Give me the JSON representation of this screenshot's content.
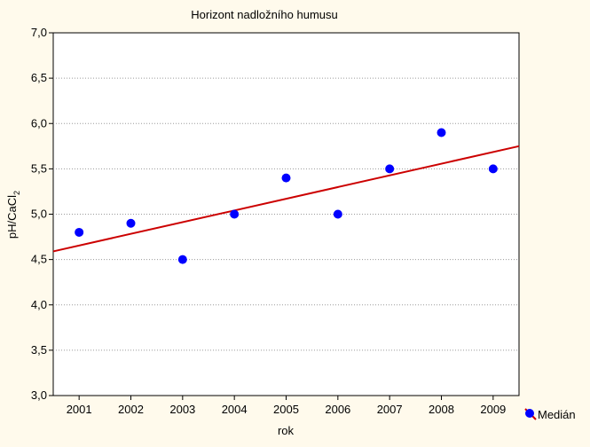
{
  "chart_data": {
    "type": "scatter",
    "title": "Horizont nadložního humusu",
    "xlabel": "rok",
    "ylabel_main": "pH/CaCl",
    "ylabel_sub": "2",
    "x_ticks": [
      "2001",
      "2002",
      "2003",
      "2004",
      "2005",
      "2006",
      "2007",
      "2008",
      "2009"
    ],
    "y_ticks": [
      "3,0",
      "3,5",
      "4,0",
      "4,5",
      "5,0",
      "5,5",
      "6,0",
      "6,5",
      "7,0"
    ],
    "xlim": [
      2000.5,
      2009.5
    ],
    "ylim": [
      3.0,
      7.0
    ],
    "grid": "horizontal dotted",
    "legend_position": "bottom-right",
    "series": [
      {
        "name": "Medián",
        "x": [
          2001,
          2002,
          2003,
          2004,
          2005,
          2006,
          2007,
          2008,
          2009
        ],
        "y": [
          4.8,
          4.9,
          4.5,
          5.0,
          5.4,
          5.0,
          5.5,
          5.9,
          5.5
        ],
        "marker_color": "#0000ff"
      }
    ],
    "trendline": {
      "x": [
        2000.5,
        2009.5
      ],
      "y": [
        4.59,
        5.75
      ],
      "color": "#cc0000"
    }
  }
}
